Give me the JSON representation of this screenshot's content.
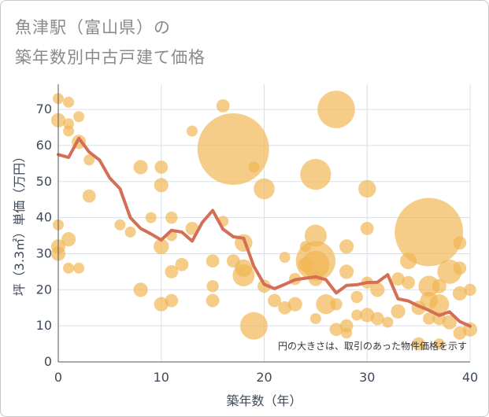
{
  "page": {
    "title_line1": "魚津駅（富山県）の",
    "title_line2": "築年数別中古戸建て価格"
  },
  "chart_data": {
    "type": "scatter",
    "title": "魚津駅（富山県）の築年数別中古戸建て価格",
    "xlabel": "築年数（年）",
    "ylabel": "坪（3.3㎡）単価（万円）",
    "xlim": [
      0,
      40
    ],
    "ylim": [
      0,
      77
    ],
    "xticks": [
      0,
      10,
      20,
      30,
      40
    ],
    "yticks": [
      0,
      10,
      20,
      30,
      40,
      50,
      60,
      70
    ],
    "grid": true,
    "annotation": "円の大きさは、取引のあった物件価格を示す",
    "colors": {
      "bubble": "#f0b550",
      "line": "#d46e55"
    },
    "bubbles": [
      {
        "x": 0,
        "y": 73,
        "s": 1
      },
      {
        "x": 0,
        "y": 67,
        "s": 1.3
      },
      {
        "x": 0,
        "y": 38,
        "s": 1
      },
      {
        "x": 0,
        "y": 32,
        "s": 1.3
      },
      {
        "x": 0,
        "y": 30,
        "s": 1.3
      },
      {
        "x": 1,
        "y": 72,
        "s": 1
      },
      {
        "x": 1,
        "y": 66,
        "s": 1
      },
      {
        "x": 1,
        "y": 64,
        "s": 1
      },
      {
        "x": 1,
        "y": 34,
        "s": 1.3
      },
      {
        "x": 1,
        "y": 26,
        "s": 1
      },
      {
        "x": 2,
        "y": 68,
        "s": 1
      },
      {
        "x": 2,
        "y": 61,
        "s": 1.3
      },
      {
        "x": 2,
        "y": 26,
        "s": 1
      },
      {
        "x": 3,
        "y": 56,
        "s": 1
      },
      {
        "x": 3,
        "y": 46,
        "s": 1.2
      },
      {
        "x": 6,
        "y": 38,
        "s": 1
      },
      {
        "x": 7,
        "y": 36,
        "s": 1
      },
      {
        "x": 8,
        "y": 54,
        "s": 1.3
      },
      {
        "x": 8,
        "y": 20,
        "s": 1.3
      },
      {
        "x": 9,
        "y": 40,
        "s": 1
      },
      {
        "x": 10,
        "y": 54,
        "s": 1.2
      },
      {
        "x": 10,
        "y": 49,
        "s": 1.3
      },
      {
        "x": 10,
        "y": 32,
        "s": 1.4
      },
      {
        "x": 10,
        "y": 16,
        "s": 1.3
      },
      {
        "x": 11,
        "y": 40,
        "s": 1.1
      },
      {
        "x": 11,
        "y": 35,
        "s": 1
      },
      {
        "x": 11,
        "y": 25,
        "s": 1.2
      },
      {
        "x": 11,
        "y": 17,
        "s": 1.2
      },
      {
        "x": 12,
        "y": 27,
        "s": 1.2
      },
      {
        "x": 13,
        "y": 64,
        "s": 1
      },
      {
        "x": 13,
        "y": 37,
        "s": 1.2
      },
      {
        "x": 15,
        "y": 28,
        "s": 1.2
      },
      {
        "x": 15,
        "y": 21,
        "s": 1.1
      },
      {
        "x": 15,
        "y": 17,
        "s": 1.2
      },
      {
        "x": 16,
        "y": 71,
        "s": 1.2
      },
      {
        "x": 16,
        "y": 39,
        "s": 1
      },
      {
        "x": 17,
        "y": 59,
        "s": 6.5
      },
      {
        "x": 17,
        "y": 28,
        "s": 1.2
      },
      {
        "x": 18,
        "y": 33,
        "s": 1.6
      },
      {
        "x": 18,
        "y": 26,
        "s": 1.6
      },
      {
        "x": 18,
        "y": 24,
        "s": 2
      },
      {
        "x": 19,
        "y": 54,
        "s": 1
      },
      {
        "x": 19,
        "y": 10,
        "s": 2.5
      },
      {
        "x": 20,
        "y": 48,
        "s": 1.9
      },
      {
        "x": 20,
        "y": 21,
        "s": 1.2
      },
      {
        "x": 21,
        "y": 17,
        "s": 1.2
      },
      {
        "x": 22,
        "y": 29,
        "s": 1
      },
      {
        "x": 22,
        "y": 15,
        "s": 1.2
      },
      {
        "x": 23,
        "y": 23,
        "s": 1.1
      },
      {
        "x": 23,
        "y": 16,
        "s": 1.3
      },
      {
        "x": 24,
        "y": 32,
        "s": 1
      },
      {
        "x": 24,
        "y": 27,
        "s": 1.3
      },
      {
        "x": 25,
        "y": 52,
        "s": 2.8
      },
      {
        "x": 25,
        "y": 35,
        "s": 2
      },
      {
        "x": 25,
        "y": 28,
        "s": 3.6
      },
      {
        "x": 25,
        "y": 27,
        "s": 2.5
      },
      {
        "x": 25,
        "y": 23,
        "s": 1.3
      },
      {
        "x": 25,
        "y": 12,
        "s": 1
      },
      {
        "x": 26,
        "y": 16,
        "s": 1.8
      },
      {
        "x": 27,
        "y": 70,
        "s": 3.4
      },
      {
        "x": 27,
        "y": 16,
        "s": 1.1
      },
      {
        "x": 27,
        "y": 9,
        "s": 1.2
      },
      {
        "x": 28,
        "y": 32,
        "s": 1.3
      },
      {
        "x": 28,
        "y": 25,
        "s": 1.3
      },
      {
        "x": 28,
        "y": 10,
        "s": 1.2
      },
      {
        "x": 28,
        "y": 8,
        "s": 1
      },
      {
        "x": 29,
        "y": 18,
        "s": 1.1
      },
      {
        "x": 29,
        "y": 13,
        "s": 1
      },
      {
        "x": 30,
        "y": 48,
        "s": 1.6
      },
      {
        "x": 30,
        "y": 37,
        "s": 1.2
      },
      {
        "x": 30,
        "y": 22,
        "s": 1.1
      },
      {
        "x": 30,
        "y": 13,
        "s": 1.3
      },
      {
        "x": 31,
        "y": 20,
        "s": 1.3
      },
      {
        "x": 31,
        "y": 12,
        "s": 1.2
      },
      {
        "x": 32,
        "y": 11,
        "s": 1
      },
      {
        "x": 33,
        "y": 23,
        "s": 1.2
      },
      {
        "x": 33,
        "y": 14,
        "s": 1.3
      },
      {
        "x": 34,
        "y": 28,
        "s": 1.5
      },
      {
        "x": 34,
        "y": 22,
        "s": 1.2
      },
      {
        "x": 35,
        "y": 15,
        "s": 1.3
      },
      {
        "x": 35,
        "y": 5,
        "s": 1.2
      },
      {
        "x": 36,
        "y": 36,
        "s": 6.2
      },
      {
        "x": 36,
        "y": 21,
        "s": 1.9
      },
      {
        "x": 36,
        "y": 17,
        "s": 1.6
      },
      {
        "x": 36,
        "y": 12,
        "s": 1.1
      },
      {
        "x": 37,
        "y": 21,
        "s": 1.3
      },
      {
        "x": 37,
        "y": 16,
        "s": 1.8
      },
      {
        "x": 37,
        "y": 12,
        "s": 1.2
      },
      {
        "x": 37,
        "y": 5,
        "s": 1
      },
      {
        "x": 38,
        "y": 25,
        "s": 2.2
      },
      {
        "x": 38,
        "y": 11,
        "s": 1.3
      },
      {
        "x": 39,
        "y": 33,
        "s": 1.2
      },
      {
        "x": 39,
        "y": 26,
        "s": 1.2
      },
      {
        "x": 39,
        "y": 19,
        "s": 1.3
      },
      {
        "x": 39,
        "y": 8,
        "s": 1.2
      },
      {
        "x": 40,
        "y": 20,
        "s": 1.1
      },
      {
        "x": 40,
        "y": 9,
        "s": 1.3
      }
    ],
    "line": {
      "x": [
        0,
        1,
        2,
        3,
        4,
        5,
        6,
        7,
        8,
        9,
        10,
        11,
        12,
        13,
        14,
        15,
        16,
        17,
        18,
        19,
        20,
        21,
        22,
        23,
        24,
        25,
        26,
        27,
        28,
        29,
        30,
        31,
        32,
        33,
        34,
        35,
        36,
        37,
        38,
        39,
        40
      ],
      "y": [
        57.5,
        56.7,
        62,
        58.2,
        56.0,
        51.0,
        48.0,
        40.0,
        37.0,
        35.5,
        33.8,
        36.5,
        36.0,
        33.5,
        38.7,
        42.0,
        36.8,
        34.7,
        34.3,
        26.5,
        21.5,
        20.3,
        21.5,
        22.8,
        23.2,
        23.6,
        22.8,
        19.1,
        21.2,
        21.4,
        22.0,
        22.1,
        24.2,
        17.5,
        16.9,
        15.5,
        14.3,
        12.9,
        13.9,
        11.2,
        9.9
      ]
    }
  }
}
